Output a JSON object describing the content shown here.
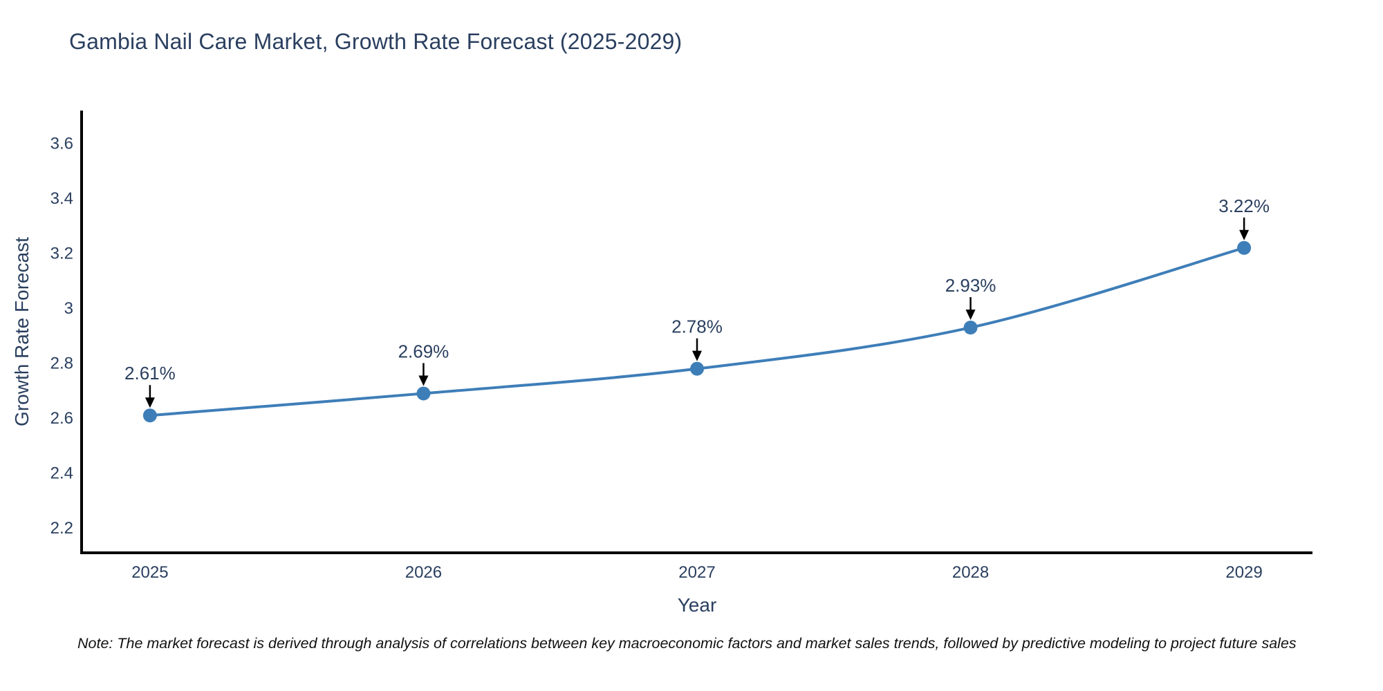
{
  "chart_data": {
    "type": "line",
    "title": "Gambia Nail Care Market, Growth Rate Forecast (2025-2029)",
    "xlabel": "Year",
    "ylabel": "Growth Rate Forecast",
    "x": [
      2025,
      2026,
      2027,
      2028,
      2029
    ],
    "xticks": [
      2025,
      2026,
      2027,
      2028,
      2029
    ],
    "yticks": [
      2.2,
      2.4,
      2.6,
      2.8,
      3,
      3.2,
      3.4,
      3.6
    ],
    "xlim": [
      2024.75,
      2029.25
    ],
    "ylim": [
      2.11,
      3.72
    ],
    "grid": false,
    "legend_position": "none",
    "line_shape": "spline",
    "series": [
      {
        "name": "Growth Rate Forecast",
        "values": [
          2.61,
          2.69,
          2.78,
          2.93,
          3.22
        ],
        "point_labels": [
          "2.61%",
          "2.69%",
          "2.78%",
          "2.93%",
          "3.22%"
        ]
      }
    ],
    "colors": {
      "line": "#3e7eb8",
      "marker": "#3e7eb8",
      "axis_line": "#000000",
      "tick_label": "#2a3f5f",
      "annotation_text": "#2a3f5f",
      "annotation_arrow": "#000000",
      "title": "#2a3f5f",
      "background": "#ffffff"
    }
  },
  "footnote": {
    "text": "Note: The market forecast is derived through analysis of correlations between key macroeconomic factors and market sales trends, followed by predictive modeling to project future sales"
  }
}
